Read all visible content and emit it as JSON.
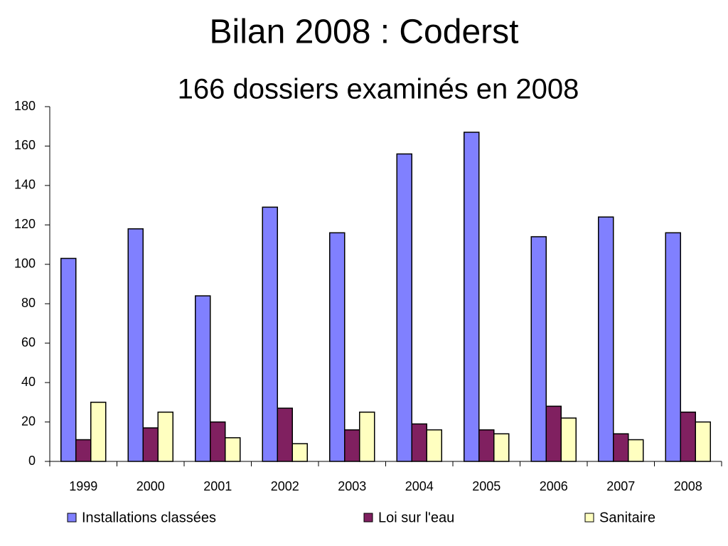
{
  "chart_data": {
    "type": "bar",
    "title": "Bilan 2008 : Coderst",
    "subtitle": "166 dossiers examinés en 2008",
    "categories": [
      "1999",
      "2000",
      "2001",
      "2002",
      "2003",
      "2004",
      "2005",
      "2006",
      "2007",
      "2008"
    ],
    "series": [
      {
        "name": "Installations classées",
        "color": "#8080ff",
        "values": [
          103,
          118,
          84,
          129,
          116,
          156,
          167,
          114,
          124,
          116
        ]
      },
      {
        "name": "Loi sur l'eau",
        "color": "#802060",
        "values": [
          11,
          17,
          20,
          27,
          16,
          19,
          16,
          28,
          14,
          25
        ]
      },
      {
        "name": "Sanitaire",
        "color": "#ffffc0",
        "values": [
          30,
          25,
          12,
          9,
          25,
          16,
          14,
          22,
          11,
          20
        ]
      }
    ],
    "ylim": [
      0,
      180
    ],
    "yticks": [
      0,
      20,
      40,
      60,
      80,
      100,
      120,
      140,
      160,
      180
    ],
    "legend": "bottom"
  }
}
